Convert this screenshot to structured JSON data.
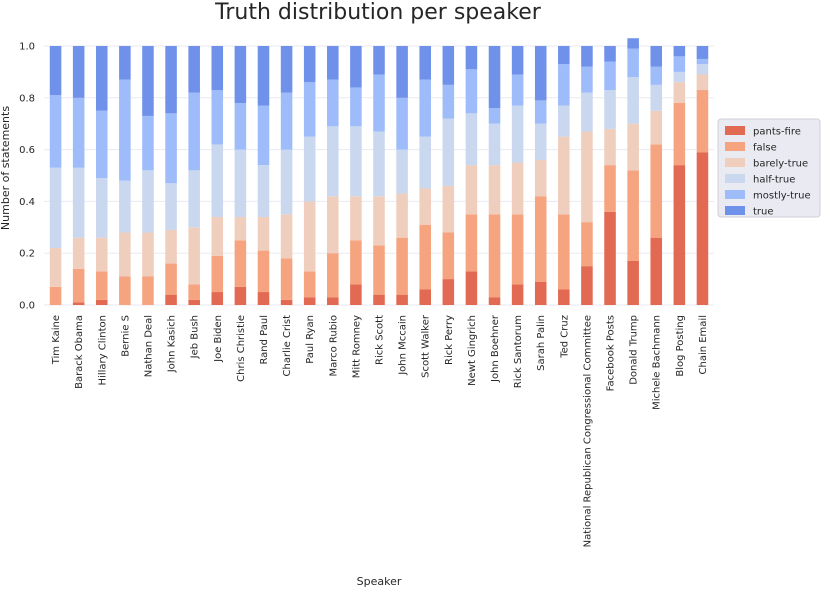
{
  "chart_data": {
    "type": "bar",
    "stacked": true,
    "title": "Truth distribution per speaker",
    "xlabel": "Speaker",
    "ylabel": "Number of statements",
    "ylim": [
      0,
      1.0
    ],
    "yticks": [
      "0.0",
      "0.2",
      "0.4",
      "0.6",
      "0.8",
      "1.0"
    ],
    "grid": true,
    "legend_position": "right",
    "categories": [
      "Tim Kaine",
      "Barack Obama",
      "Hillary Clinton",
      "Bernie S",
      "Nathan Deal",
      "John Kasich",
      "Jeb Bush",
      "Joe Biden",
      "Chris Christie",
      "Rand Paul",
      "Charlie Crist",
      "Paul Ryan",
      "Marco Rubio",
      "Mitt Romney",
      "Rick Scott",
      "John Mccain",
      "Scott Walker",
      "Rick Perry",
      "Newt Gingrich",
      "John Boehner",
      "Rick Santorum",
      "Sarah Palin",
      "Ted Cruz",
      "National Republican Congressional Committee",
      "Facebook Posts",
      "Donald Trump",
      "Michele Bachmann",
      "Blog Posting",
      "Chain Email"
    ],
    "series": [
      {
        "name": "pants-fire",
        "color": "#e26952",
        "values": [
          0.0,
          0.01,
          0.02,
          0.0,
          0.0,
          0.04,
          0.02,
          0.05,
          0.07,
          0.05,
          0.02,
          0.03,
          0.03,
          0.08,
          0.04,
          0.04,
          0.06,
          0.1,
          0.13,
          0.03,
          0.08,
          0.09,
          0.06,
          0.15,
          0.36,
          0.17,
          0.26,
          0.54,
          0.59
        ]
      },
      {
        "name": "false",
        "color": "#f6a47f",
        "values": [
          0.07,
          0.13,
          0.11,
          0.11,
          0.11,
          0.12,
          0.06,
          0.14,
          0.18,
          0.16,
          0.16,
          0.1,
          0.17,
          0.17,
          0.19,
          0.22,
          0.25,
          0.18,
          0.22,
          0.32,
          0.27,
          0.33,
          0.29,
          0.17,
          0.18,
          0.35,
          0.36,
          0.24,
          0.24
        ]
      },
      {
        "name": "barely-true",
        "color": "#efcebd",
        "values": [
          0.15,
          0.12,
          0.13,
          0.17,
          0.17,
          0.13,
          0.22,
          0.15,
          0.09,
          0.13,
          0.17,
          0.27,
          0.22,
          0.17,
          0.19,
          0.17,
          0.14,
          0.18,
          0.19,
          0.19,
          0.2,
          0.14,
          0.3,
          0.35,
          0.14,
          0.18,
          0.13,
          0.08,
          0.06
        ]
      },
      {
        "name": "half-true",
        "color": "#c9d7ef",
        "values": [
          0.31,
          0.27,
          0.23,
          0.2,
          0.24,
          0.18,
          0.22,
          0.28,
          0.26,
          0.2,
          0.25,
          0.25,
          0.27,
          0.27,
          0.25,
          0.17,
          0.2,
          0.26,
          0.2,
          0.16,
          0.22,
          0.14,
          0.12,
          0.15,
          0.15,
          0.18,
          0.1,
          0.04,
          0.04
        ]
      },
      {
        "name": "mostly-true",
        "color": "#9ebcf9",
        "values": [
          0.28,
          0.27,
          0.26,
          0.39,
          0.21,
          0.27,
          0.3,
          0.21,
          0.18,
          0.23,
          0.22,
          0.21,
          0.18,
          0.15,
          0.22,
          0.2,
          0.22,
          0.13,
          0.17,
          0.06,
          0.12,
          0.09,
          0.16,
          0.1,
          0.11,
          0.11,
          0.07,
          0.06,
          0.02
        ]
      },
      {
        "name": "true",
        "color": "#6f91ea",
        "values": [
          0.19,
          0.2,
          0.25,
          0.13,
          0.27,
          0.26,
          0.18,
          0.17,
          0.22,
          0.23,
          0.18,
          0.14,
          0.13,
          0.16,
          0.11,
          0.2,
          0.13,
          0.15,
          0.09,
          0.24,
          0.11,
          0.21,
          0.07,
          0.08,
          0.06,
          0.04,
          0.08,
          0.04,
          0.05
        ]
      }
    ]
  }
}
